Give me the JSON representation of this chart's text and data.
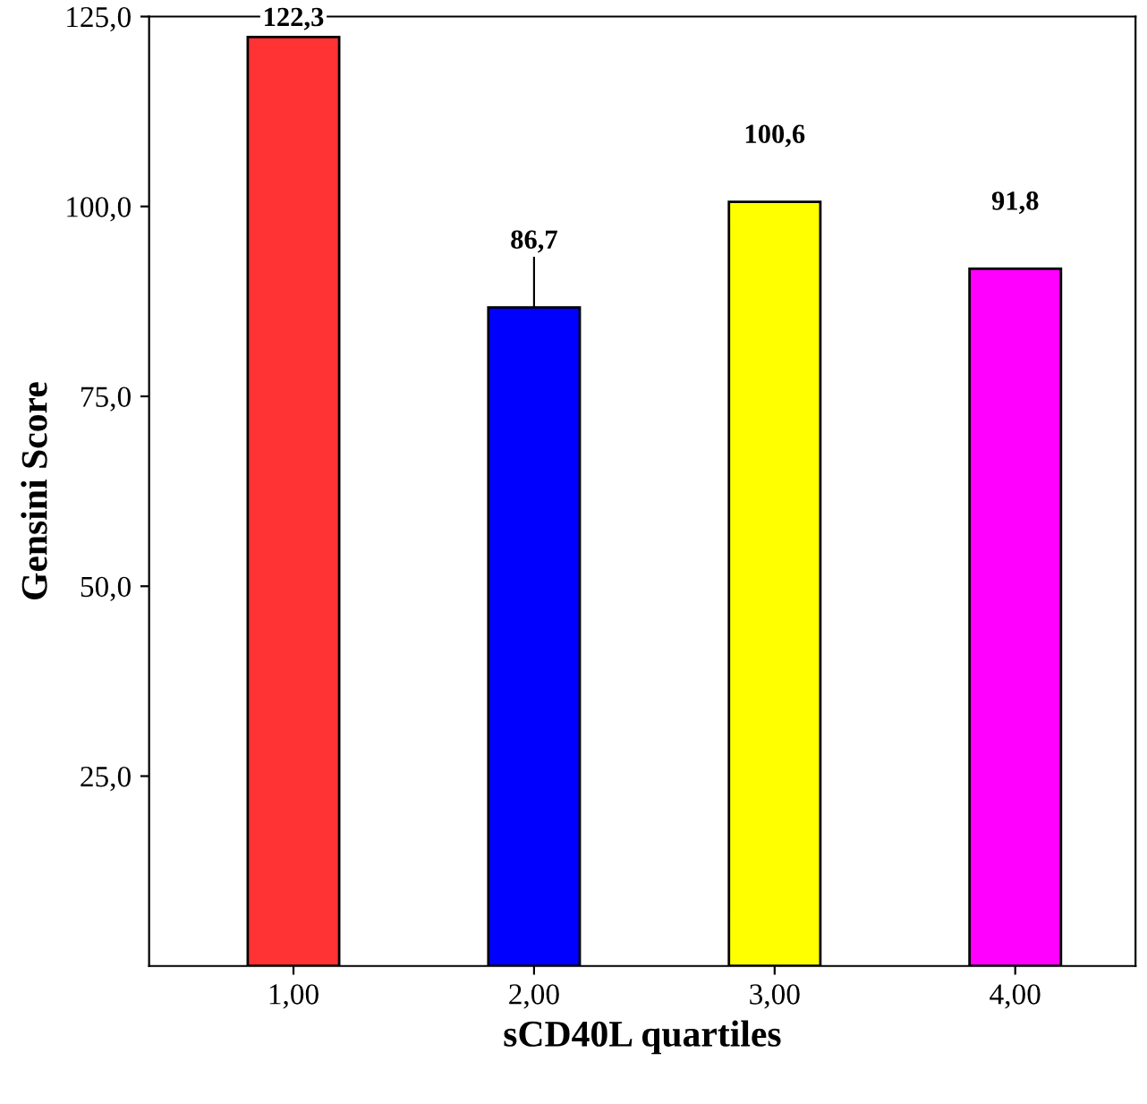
{
  "chart_data": {
    "type": "bar",
    "xlabel": "sCD40L quartiles",
    "ylabel": "Gensini Score",
    "categories": [
      "1,00",
      "2,00",
      "3,00",
      "4,00"
    ],
    "values": [
      122.3,
      86.7,
      100.6,
      91.8
    ],
    "colors": [
      "#ff3333",
      "#0000ff",
      "#ffff00",
      "#ff00ff"
    ],
    "errors": [
      null,
      8.5,
      null,
      null
    ],
    "value_labels": [
      "122,3",
      "86,7",
      "100,6",
      "91,8"
    ],
    "ylim": [
      0,
      125
    ],
    "yticks": [
      {
        "value": 25,
        "label": "25,0"
      },
      {
        "value": 50,
        "label": "50,0"
      },
      {
        "value": 75,
        "label": "75,0"
      },
      {
        "value": 100,
        "label": "100,0"
      },
      {
        "value": 125,
        "label": "125,0"
      }
    ],
    "grid": false
  }
}
